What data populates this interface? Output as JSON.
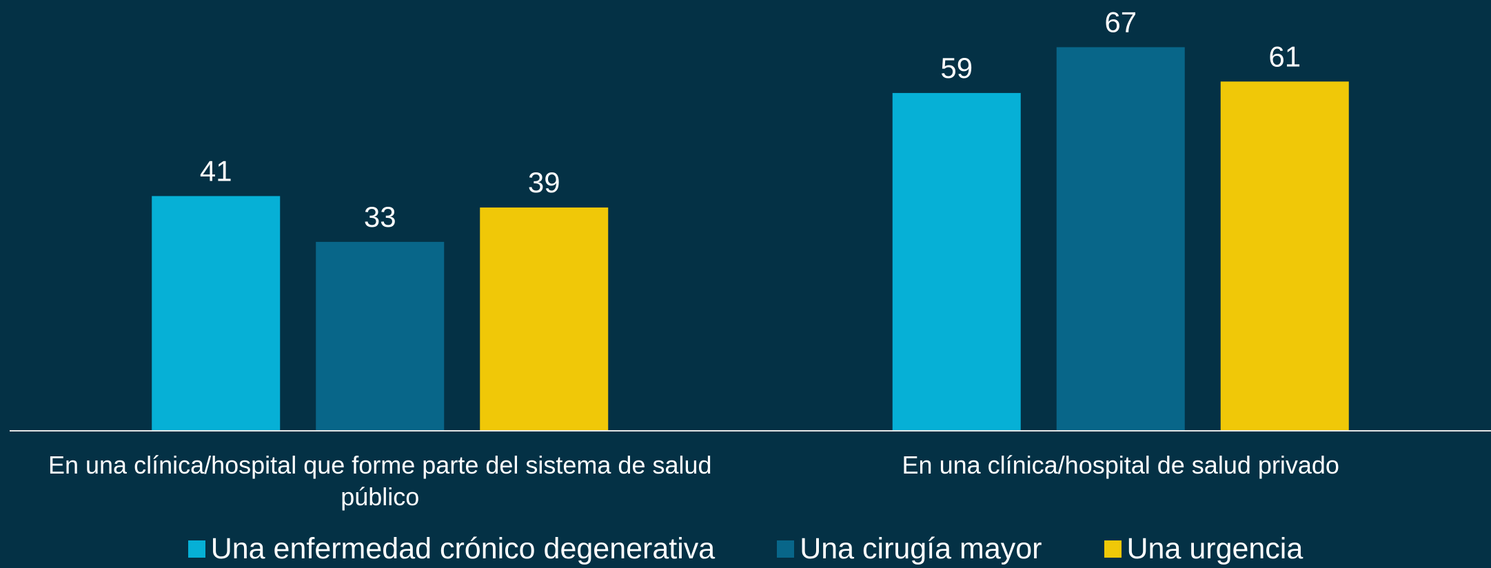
{
  "chart_data": {
    "type": "bar",
    "categories": [
      "En una clínica/hospital que forme parte del sistema de salud público",
      "En una clínica/hospital de salud privado"
    ],
    "series": [
      {
        "name": "Una enfermedad crónico degenerativa",
        "color": "#06b0d6",
        "values": [
          41,
          59
        ]
      },
      {
        "name": "Una cirugía mayor",
        "color": "#086689",
        "values": [
          33,
          67
        ]
      },
      {
        "name": "Una urgencia",
        "color": "#f0c808",
        "values": [
          39,
          61
        ]
      }
    ],
    "ylim": [
      0,
      75
    ],
    "grid": false,
    "legend": "bottom"
  }
}
